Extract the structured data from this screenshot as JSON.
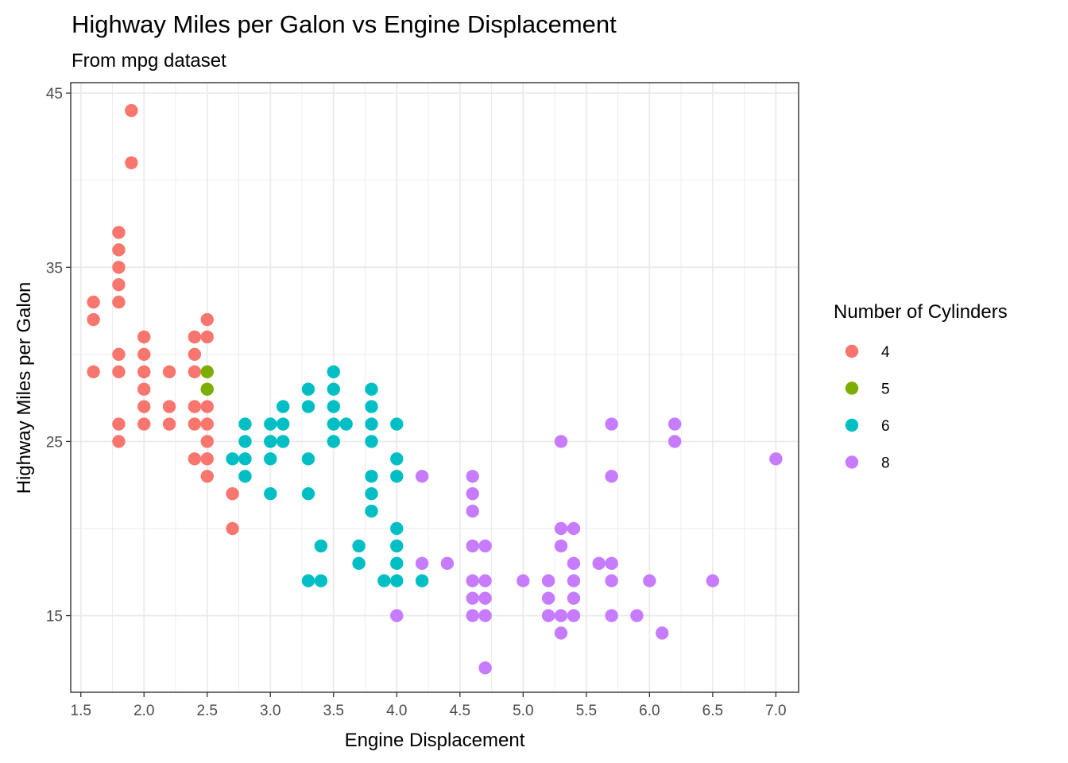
{
  "chart_data": {
    "type": "scatter",
    "title": "Highway Miles per Galon vs Engine Displacement",
    "subtitle": "From mpg dataset",
    "xlabel": "Engine Displacement",
    "ylabel": "Highway Miles per Galon",
    "xlim": [
      1.42,
      7.18
    ],
    "ylim": [
      10.6,
      45.6
    ],
    "x_ticks": [
      1.5,
      2.0,
      2.5,
      3.0,
      3.5,
      4.0,
      4.5,
      5.0,
      5.5,
      6.0,
      6.5,
      7.0
    ],
    "x_tick_labels": [
      "1.5",
      "2.0",
      "2.5",
      "3.0",
      "3.5",
      "4.0",
      "4.5",
      "5.0",
      "5.5",
      "6.0",
      "6.5",
      "7.0"
    ],
    "y_ticks": [
      15,
      25,
      35,
      45
    ],
    "y_tick_labels": [
      "15",
      "25",
      "35",
      "45"
    ],
    "grid": true,
    "legend": {
      "title": "Number of Cylinders",
      "position": "right"
    },
    "series": [
      {
        "name": "4",
        "color": "#F8766D",
        "points": [
          [
            1.6,
            33
          ],
          [
            1.6,
            32
          ],
          [
            1.6,
            29
          ],
          [
            1.8,
            37
          ],
          [
            1.8,
            36
          ],
          [
            1.8,
            35
          ],
          [
            1.8,
            34
          ],
          [
            1.8,
            33
          ],
          [
            1.8,
            30
          ],
          [
            1.8,
            29
          ],
          [
            1.8,
            26
          ],
          [
            1.8,
            25
          ],
          [
            1.9,
            44
          ],
          [
            1.9,
            41
          ],
          [
            2.0,
            31
          ],
          [
            2.0,
            30
          ],
          [
            2.0,
            29
          ],
          [
            2.0,
            28
          ],
          [
            2.0,
            27
          ],
          [
            2.0,
            26
          ],
          [
            2.2,
            29
          ],
          [
            2.2,
            27
          ],
          [
            2.2,
            26
          ],
          [
            2.4,
            31
          ],
          [
            2.4,
            30
          ],
          [
            2.4,
            29
          ],
          [
            2.4,
            27
          ],
          [
            2.4,
            26
          ],
          [
            2.4,
            24
          ],
          [
            2.5,
            32
          ],
          [
            2.5,
            31
          ],
          [
            2.5,
            27
          ],
          [
            2.5,
            26
          ],
          [
            2.5,
            25
          ],
          [
            2.5,
            24
          ],
          [
            2.5,
            23
          ],
          [
            2.7,
            22
          ],
          [
            2.7,
            20
          ]
        ]
      },
      {
        "name": "5",
        "color": "#7CAE00",
        "points": [
          [
            2.5,
            29
          ],
          [
            2.5,
            28
          ]
        ]
      },
      {
        "name": "6",
        "color": "#00BFC4",
        "points": [
          [
            2.7,
            24
          ],
          [
            2.8,
            26
          ],
          [
            2.8,
            25
          ],
          [
            2.8,
            24
          ],
          [
            2.8,
            23
          ],
          [
            3.0,
            26
          ],
          [
            3.0,
            25
          ],
          [
            3.0,
            24
          ],
          [
            3.0,
            22
          ],
          [
            3.1,
            27
          ],
          [
            3.1,
            26
          ],
          [
            3.1,
            25
          ],
          [
            3.3,
            28
          ],
          [
            3.3,
            27
          ],
          [
            3.3,
            24
          ],
          [
            3.3,
            22
          ],
          [
            3.3,
            17
          ],
          [
            3.4,
            19
          ],
          [
            3.4,
            17
          ],
          [
            3.5,
            29
          ],
          [
            3.5,
            28
          ],
          [
            3.5,
            27
          ],
          [
            3.5,
            26
          ],
          [
            3.5,
            25
          ],
          [
            3.6,
            26
          ],
          [
            3.7,
            19
          ],
          [
            3.7,
            18
          ],
          [
            3.8,
            28
          ],
          [
            3.8,
            27
          ],
          [
            3.8,
            26
          ],
          [
            3.8,
            25
          ],
          [
            3.8,
            23
          ],
          [
            3.8,
            22
          ],
          [
            3.8,
            21
          ],
          [
            3.9,
            17
          ],
          [
            4.0,
            26
          ],
          [
            4.0,
            24
          ],
          [
            4.0,
            23
          ],
          [
            4.0,
            20
          ],
          [
            4.0,
            19
          ],
          [
            4.0,
            18
          ],
          [
            4.0,
            17
          ],
          [
            4.2,
            17
          ]
        ]
      },
      {
        "name": "8",
        "color": "#C77CFF",
        "points": [
          [
            4.0,
            15
          ],
          [
            4.2,
            23
          ],
          [
            4.2,
            18
          ],
          [
            4.4,
            18
          ],
          [
            4.6,
            23
          ],
          [
            4.6,
            22
          ],
          [
            4.6,
            21
          ],
          [
            4.6,
            19
          ],
          [
            4.6,
            17
          ],
          [
            4.6,
            16
          ],
          [
            4.6,
            15
          ],
          [
            4.7,
            19
          ],
          [
            4.7,
            17
          ],
          [
            4.7,
            16
          ],
          [
            4.7,
            15
          ],
          [
            4.7,
            12
          ],
          [
            5.0,
            17
          ],
          [
            5.2,
            17
          ],
          [
            5.2,
            16
          ],
          [
            5.2,
            15
          ],
          [
            5.3,
            25
          ],
          [
            5.3,
            20
          ],
          [
            5.3,
            19
          ],
          [
            5.3,
            15
          ],
          [
            5.3,
            14
          ],
          [
            5.4,
            20
          ],
          [
            5.4,
            18
          ],
          [
            5.4,
            17
          ],
          [
            5.4,
            16
          ],
          [
            5.4,
            15
          ],
          [
            5.6,
            18
          ],
          [
            5.7,
            26
          ],
          [
            5.7,
            23
          ],
          [
            5.7,
            18
          ],
          [
            5.7,
            17
          ],
          [
            5.7,
            15
          ],
          [
            5.9,
            15
          ],
          [
            6.0,
            17
          ],
          [
            6.1,
            14
          ],
          [
            6.2,
            26
          ],
          [
            6.2,
            25
          ],
          [
            6.5,
            17
          ],
          [
            7.0,
            24
          ]
        ]
      }
    ]
  }
}
